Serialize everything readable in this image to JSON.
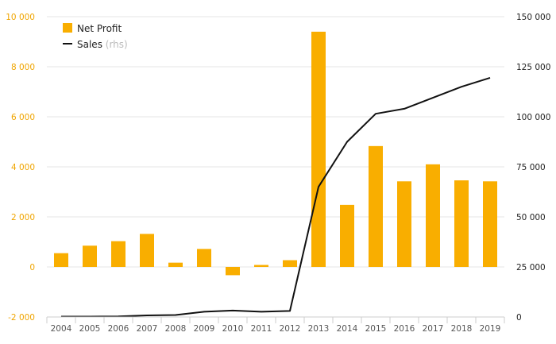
{
  "chart_data": {
    "type": "bar",
    "categories": [
      "2004",
      "2005",
      "2006",
      "2007",
      "2008",
      "2009",
      "2010",
      "2011",
      "2012",
      "2013",
      "2014",
      "2015",
      "2016",
      "2017",
      "2018",
      "2019"
    ],
    "series": [
      {
        "name": "Net Profit",
        "type": "bar",
        "axis": "left",
        "color": "#f9ae00",
        "values": [
          550,
          850,
          1030,
          1320,
          170,
          720,
          -330,
          80,
          270,
          9400,
          2480,
          4830,
          3420,
          4100,
          3460,
          3420
        ]
      },
      {
        "name": "Sales",
        "name_suffix": "(rhs)",
        "type": "line",
        "axis": "right",
        "color": "#111111",
        "values": [
          200,
          200,
          300,
          800,
          1000,
          2600,
          3200,
          2600,
          3000,
          65000,
          87500,
          101500,
          104000,
          109500,
          115000,
          119500
        ]
      }
    ],
    "left_axis": {
      "ylim": [
        -2000,
        10000
      ],
      "ticks": [
        -2000,
        0,
        2000,
        4000,
        6000,
        8000,
        10000
      ],
      "tick_labels": [
        "-2 000",
        "0",
        "2 000",
        "4 000",
        "6 000",
        "8 000",
        "10 000"
      ],
      "color": "#f0a500"
    },
    "right_axis": {
      "ylim": [
        0,
        150000
      ],
      "ticks": [
        0,
        25000,
        50000,
        75000,
        100000,
        125000,
        150000
      ],
      "tick_labels": [
        "0",
        "25 000",
        "50 000",
        "75 000",
        "100 000",
        "125 000",
        "150 000"
      ],
      "color": "#222222"
    },
    "grid": true,
    "legend": {
      "placement": "top-left",
      "items": [
        {
          "label": "Net Profit",
          "symbol": "bar"
        },
        {
          "label": "Sales",
          "muted": "(rhs)",
          "symbol": "line"
        }
      ]
    }
  }
}
